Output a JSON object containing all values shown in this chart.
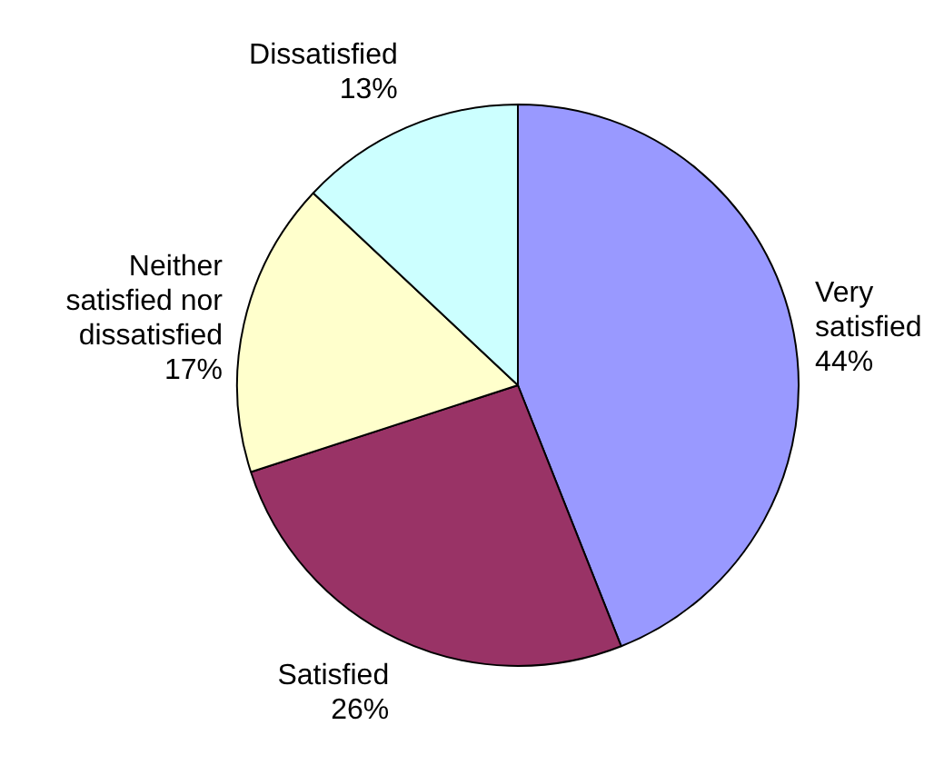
{
  "chart_data": {
    "type": "pie",
    "categories": [
      "Very satisfied",
      "Satisfied",
      "Neither satisfied nor dissatisfied",
      "Dissatisfied"
    ],
    "values": [
      44,
      26,
      17,
      13
    ],
    "value_labels": [
      "44%",
      "26%",
      "17%",
      "13%"
    ],
    "colors": [
      "#9999ff",
      "#993366",
      "#ffffcc",
      "#ccffff"
    ],
    "legend": false
  }
}
